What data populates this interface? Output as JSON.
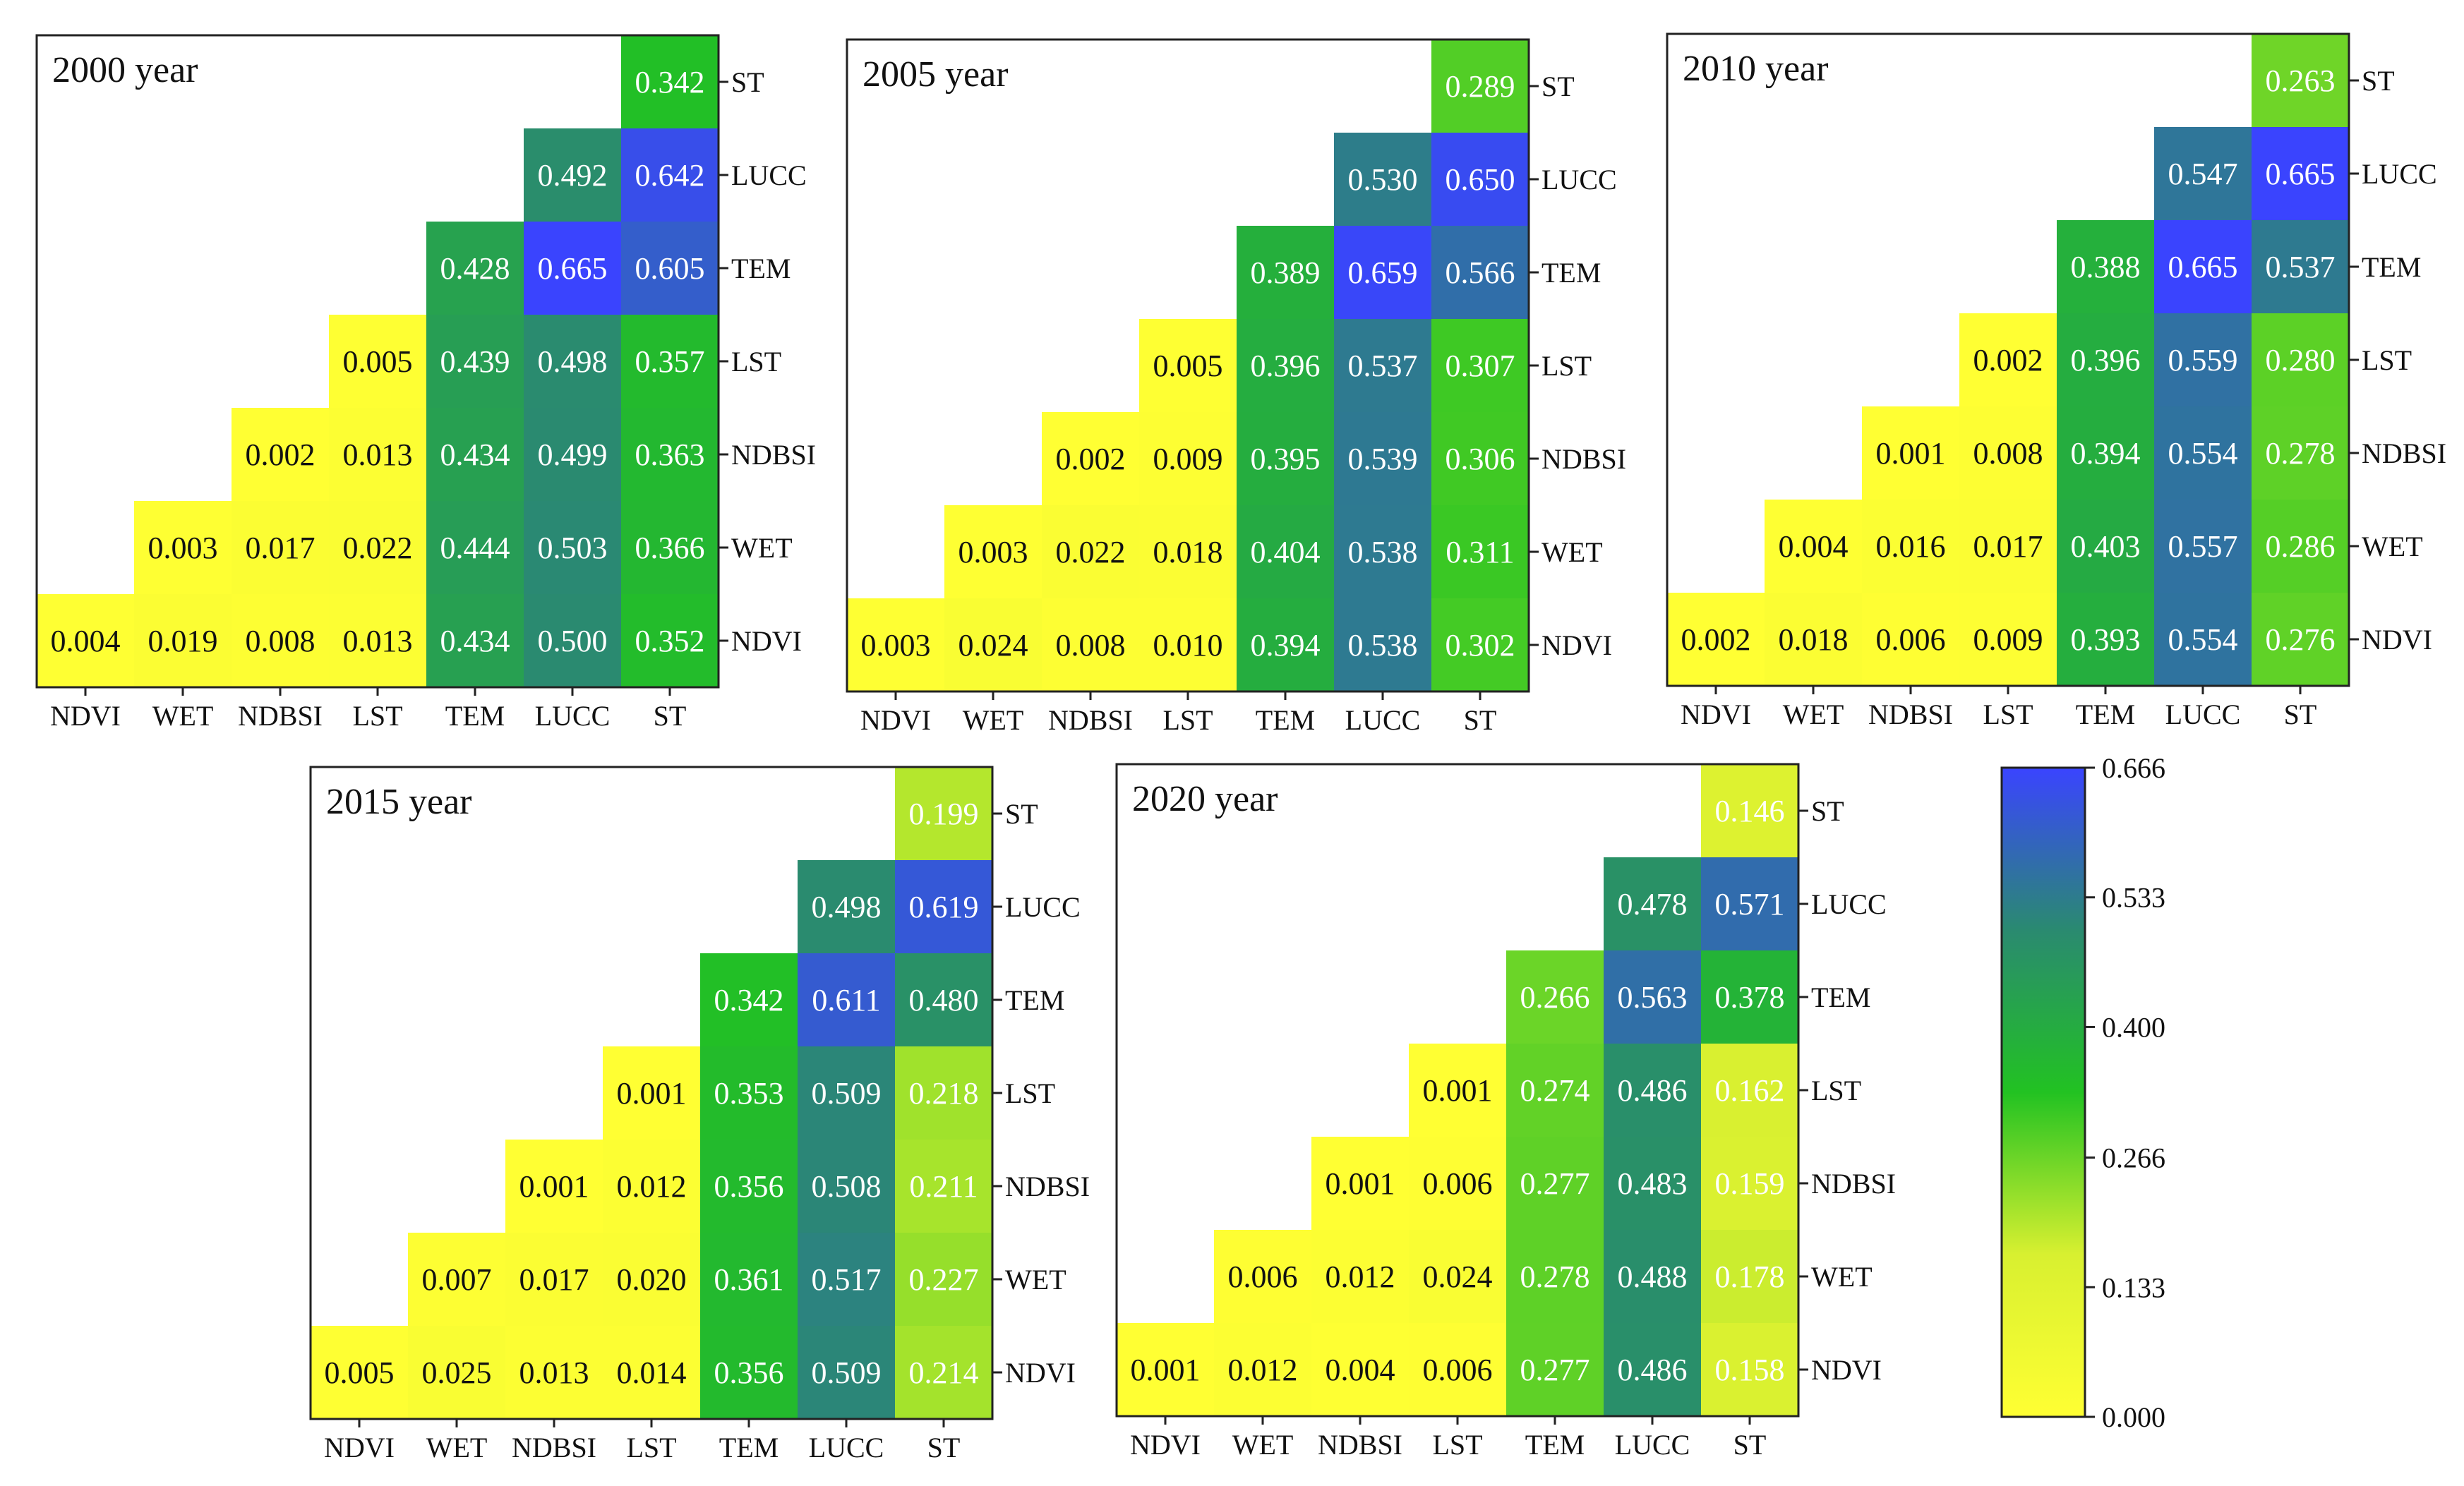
{
  "chart_data": {
    "type": "heatmap",
    "variables": [
      "NDVI",
      "WET",
      "NDBSI",
      "LST",
      "TEM",
      "LUCC",
      "ST"
    ],
    "colorbar": {
      "ticks": [
        "0.000",
        "0.133",
        "0.266",
        "0.400",
        "0.533",
        "0.666"
      ],
      "min": 0.0,
      "max": 0.666,
      "colors": [
        "#ffff33",
        "#d8f030",
        "#22c222",
        "#2a8a70",
        "#3a44ff"
      ]
    },
    "panels": [
      {
        "title": "2000 year",
        "rows": [
          [
            "0.342"
          ],
          [
            "0.492",
            "0.642"
          ],
          [
            "0.428",
            "0.665",
            "0.605"
          ],
          [
            "0.005",
            "0.439",
            "0.498",
            "0.357"
          ],
          [
            "0.002",
            "0.013",
            "0.434",
            "0.499",
            "0.363"
          ],
          [
            "0.003",
            "0.017",
            "0.022",
            "0.444",
            "0.503",
            "0.366"
          ],
          [
            "0.004",
            "0.019",
            "0.008",
            "0.013",
            "0.434",
            "0.500",
            "0.352"
          ]
        ]
      },
      {
        "title": "2005 year",
        "rows": [
          [
            "0.289"
          ],
          [
            "0.530",
            "0.650"
          ],
          [
            "0.389",
            "0.659",
            "0.566"
          ],
          [
            "0.005",
            "0.396",
            "0.537",
            "0.307"
          ],
          [
            "0.002",
            "0.009",
            "0.395",
            "0.539",
            "0.306"
          ],
          [
            "0.003",
            "0.022",
            "0.018",
            "0.404",
            "0.538",
            "0.311"
          ],
          [
            "0.003",
            "0.024",
            "0.008",
            "0.010",
            "0.394",
            "0.538",
            "0.302"
          ]
        ]
      },
      {
        "title": "2010 year",
        "rows": [
          [
            "0.263"
          ],
          [
            "0.547",
            "0.665"
          ],
          [
            "0.388",
            "0.665",
            "0.537"
          ],
          [
            "0.002",
            "0.396",
            "0.559",
            "0.280"
          ],
          [
            "0.001",
            "0.008",
            "0.394",
            "0.554",
            "0.278"
          ],
          [
            "0.004",
            "0.016",
            "0.017",
            "0.403",
            "0.557",
            "0.286"
          ],
          [
            "0.002",
            "0.018",
            "0.006",
            "0.009",
            "0.393",
            "0.554",
            "0.276"
          ]
        ]
      },
      {
        "title": "2015 year",
        "rows": [
          [
            "0.199"
          ],
          [
            "0.498",
            "0.619"
          ],
          [
            "0.342",
            "0.611",
            "0.480"
          ],
          [
            "0.001",
            "0.353",
            "0.509",
            "0.218"
          ],
          [
            "0.001",
            "0.012",
            "0.356",
            "0.508",
            "0.211"
          ],
          [
            "0.007",
            "0.017",
            "0.020",
            "0.361",
            "0.517",
            "0.227"
          ],
          [
            "0.005",
            "0.025",
            "0.013",
            "0.014",
            "0.356",
            "0.509",
            "0.214"
          ]
        ]
      },
      {
        "title": "2020 year",
        "rows": [
          [
            "0.146"
          ],
          [
            "0.478",
            "0.571"
          ],
          [
            "0.266",
            "0.563",
            "0.378"
          ],
          [
            "0.001",
            "0.274",
            "0.486",
            "0.162"
          ],
          [
            "0.001",
            "0.006",
            "0.277",
            "0.483",
            "0.159"
          ],
          [
            "0.006",
            "0.012",
            "0.024",
            "0.278",
            "0.488",
            "0.178"
          ],
          [
            "0.001",
            "0.012",
            "0.004",
            "0.006",
            "0.277",
            "0.486",
            "0.158"
          ]
        ]
      }
    ]
  }
}
